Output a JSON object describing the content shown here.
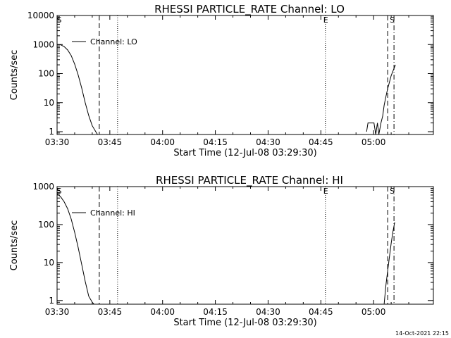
{
  "timestamp": "14-Oct-2021 22:15",
  "chart_data": [
    {
      "type": "line",
      "title": "RHESSI PARTICLE_RATE Channel: LO",
      "xlabel": "Start Time (12-Jul-08 03:29:30)",
      "ylabel": "Counts/sec",
      "ylog": true,
      "ylim": [
        0.8,
        10000
      ],
      "xlim_minutes": [
        0,
        107
      ],
      "x_ticks": [
        "03:30",
        "03:45",
        "04:00",
        "04:15",
        "04:30",
        "04:45",
        "05:00"
      ],
      "x_ticks_minutes": [
        0,
        15,
        30,
        45,
        60,
        75,
        90
      ],
      "y_ticks": [
        "1",
        "10",
        "100",
        "1000",
        "10000"
      ],
      "y_ticks_values": [
        1,
        10,
        100,
        1000,
        10000
      ],
      "legend": "Channel: LO",
      "markers": [
        {
          "label": "S",
          "minute": 0.6
        },
        {
          "label": "E",
          "minute": 76.4
        },
        {
          "label": "S",
          "minute": 95.3
        }
      ],
      "vlines_dashed": [
        12.0,
        94.0
      ],
      "vlines_dotted": [
        17.2,
        76.3
      ],
      "vlines_dashdot": [
        95.8
      ],
      "segments": [
        {
          "x": [
            0,
            1,
            2,
            3,
            4,
            5,
            6,
            7,
            8,
            9,
            10,
            11,
            11.5
          ],
          "y": [
            1000,
            980,
            850,
            650,
            420,
            210,
            90,
            32,
            10,
            3.6,
            1.6,
            1.0,
            0.8
          ]
        },
        {
          "x": [
            88.0,
            88.4,
            89.9,
            90.1,
            90.6,
            91.1,
            91.5,
            92.1,
            92.6,
            93.0,
            93.5,
            94.0,
            94.5,
            95.0,
            96.2
          ],
          "y": [
            1,
            2,
            2,
            2,
            0.8,
            2,
            0.8,
            2,
            3.5,
            8,
            16,
            30,
            50,
            85,
            200
          ]
        }
      ]
    },
    {
      "type": "line",
      "title": "RHESSI PARTICLE_RATE Channel: HI",
      "xlabel": "Start Time (12-Jul-08 03:29:30)",
      "ylabel": "Counts/sec",
      "ylog": true,
      "ylim": [
        0.8,
        1000
      ],
      "xlim_minutes": [
        0,
        107
      ],
      "x_ticks": [
        "03:30",
        "03:45",
        "04:00",
        "04:15",
        "04:30",
        "04:45",
        "05:00"
      ],
      "x_ticks_minutes": [
        0,
        15,
        30,
        45,
        60,
        75,
        90
      ],
      "y_ticks": [
        "1",
        "10",
        "100",
        "1000"
      ],
      "y_ticks_values": [
        1,
        10,
        100,
        1000
      ],
      "legend": "Channel: HI",
      "markers": [
        {
          "label": "S",
          "minute": 0.6
        },
        {
          "label": "E",
          "minute": 76.4
        },
        {
          "label": "S",
          "minute": 95.3
        }
      ],
      "vlines_dashed": [
        12.0,
        94.0
      ],
      "vlines_dotted": [
        17.2,
        76.3
      ],
      "vlines_dashdot": [
        95.8
      ],
      "segments": [
        {
          "x": [
            0,
            1,
            2,
            3,
            4,
            5,
            6,
            7,
            8,
            9,
            10,
            10.5
          ],
          "y": [
            650,
            540,
            400,
            260,
            140,
            62,
            25,
            9,
            3.2,
            1.3,
            0.9,
            0.8
          ]
        },
        {
          "x": [
            93.0,
            93.5,
            94.0,
            94.5,
            95.0,
            95.5,
            96.0
          ],
          "y": [
            0.8,
            2.5,
            6,
            14,
            32,
            65,
            115
          ]
        }
      ]
    }
  ]
}
